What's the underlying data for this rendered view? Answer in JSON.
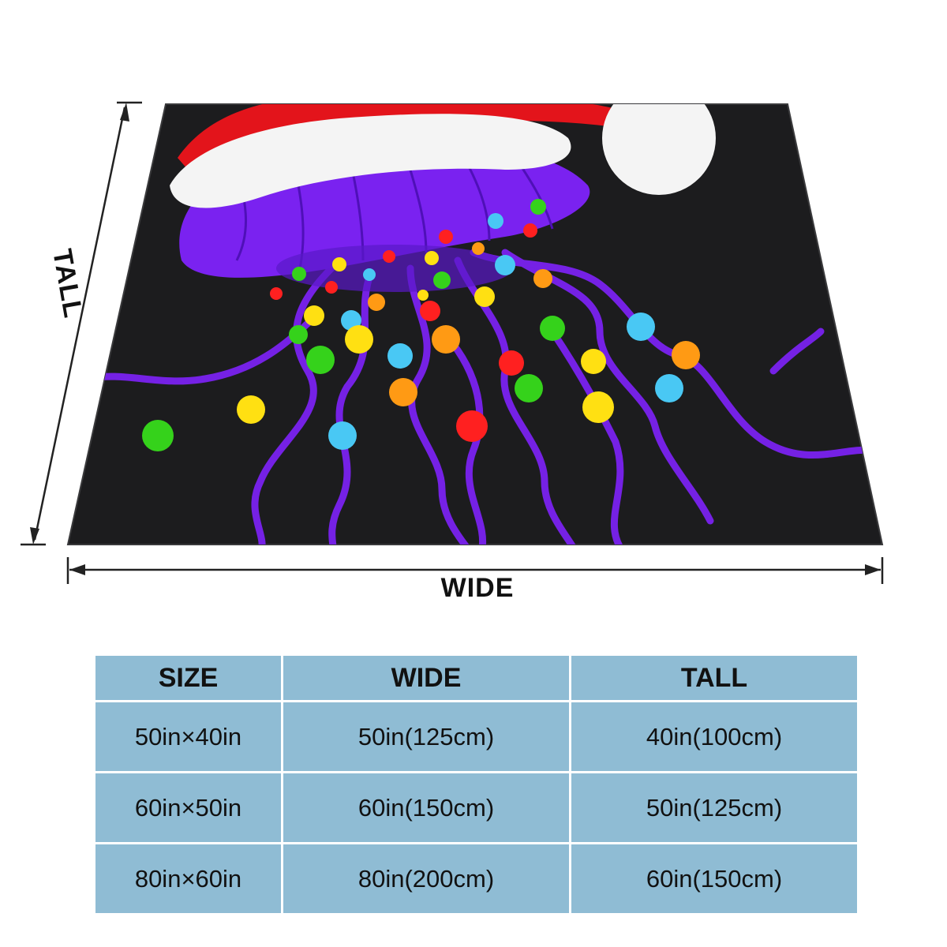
{
  "figure": {
    "wide_label": "WIDE",
    "tall_label": "TALL",
    "colors": {
      "blanket": "#1c1c1e",
      "jellyfish": "#7a22f0",
      "hat_red": "#e3141b",
      "hat_white": "#f4f4f4",
      "arrow": "#222222"
    },
    "light_colors": [
      "#ffe012",
      "#35d21b",
      "#49c8f4",
      "#ff9a14",
      "#ff2020"
    ]
  },
  "table": {
    "headers": [
      "SIZE",
      "WIDE",
      "TALL"
    ],
    "rows": [
      [
        "50in×40in",
        "50in(125cm)",
        "40in(100cm)"
      ],
      [
        "60in×50in",
        "60in(150cm)",
        "50in(125cm)"
      ],
      [
        "80in×60in",
        "80in(200cm)",
        "60in(150cm)"
      ]
    ],
    "cell_color": "#8fbcd4"
  }
}
